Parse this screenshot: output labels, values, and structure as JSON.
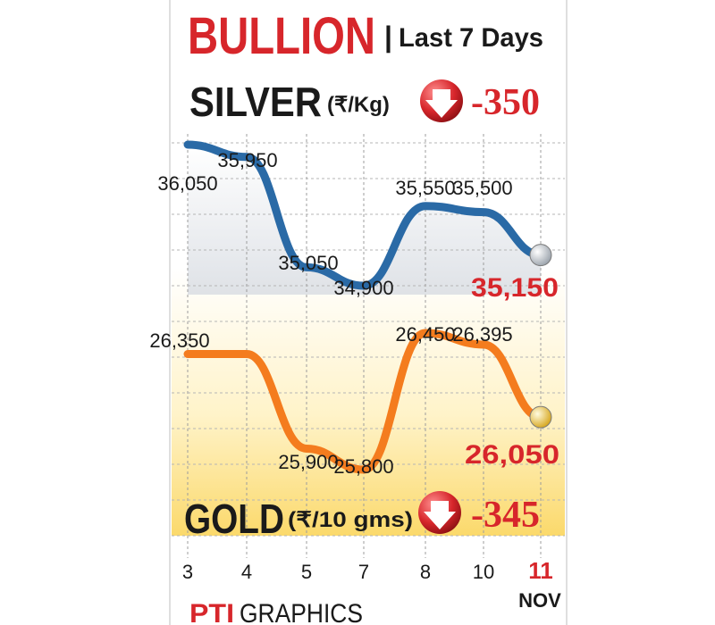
{
  "header": {
    "title": "BULLION",
    "separator": "|",
    "subtitle": "Last 7 Days"
  },
  "silver": {
    "name": "SILVER",
    "unit": "(₹/Kg)",
    "change": "-350",
    "change_icon": "down-arrow-icon",
    "final_label": "35,150"
  },
  "gold": {
    "name": "GOLD",
    "unit": "(₹/10 gms)",
    "change": "-345",
    "change_icon": "down-arrow-icon",
    "final_label": "26,050"
  },
  "footer": {
    "brand": "PTI",
    "brand_suffix": "GRAPHICS"
  },
  "colors": {
    "title_red": "#d7262b",
    "silver_line": "#2a6aa6",
    "gold_line": "#f47c1e",
    "text_dark": "#1a1a1a",
    "gold_fill": "#fde7a3",
    "silver_fill": "#dfe6ef"
  },
  "chart_data": {
    "type": "line",
    "categories": [
      "3",
      "4",
      "5",
      "7",
      "8",
      "10",
      "11"
    ],
    "x_last_sublabel": "NOV",
    "grid": true,
    "series": [
      {
        "name": "SILVER",
        "values": [
          36050,
          35950,
          35050,
          34900,
          35550,
          35500,
          35150
        ],
        "labels": [
          "36,050",
          "35,950",
          "35,050",
          "34,900",
          "35,550",
          "35,500",
          "35,150"
        ]
      },
      {
        "name": "GOLD",
        "values": [
          26350,
          26350,
          25900,
          25800,
          26450,
          26395,
          26050
        ],
        "labels": [
          "26,350",
          "",
          "25,900",
          "25,800",
          "26,450",
          "26,395",
          "26,050"
        ]
      }
    ]
  }
}
